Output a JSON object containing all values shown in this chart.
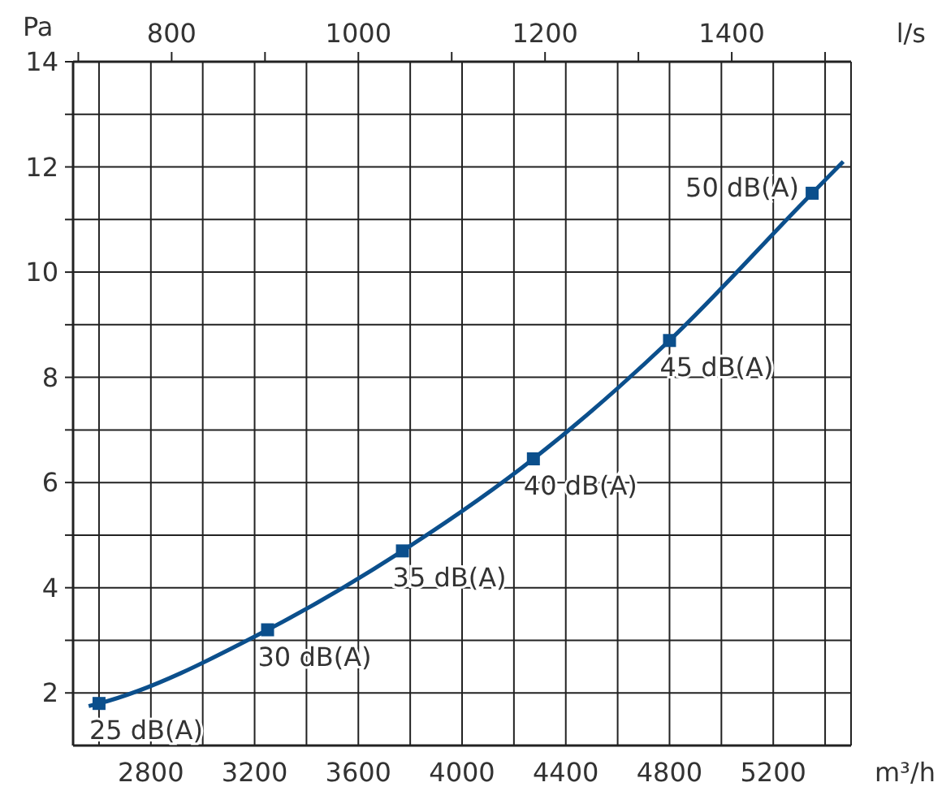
{
  "chart_data": {
    "type": "line",
    "xlabel": "m³/h",
    "ylabel": "Pa",
    "x2label": "l/s",
    "xlim": [
      2500,
      5500
    ],
    "ylim": [
      1,
      14
    ],
    "x2lim": [
      694.4,
      1527.8
    ],
    "xticks": [
      {
        "value": 2600,
        "label": null
      },
      2800,
      {
        "value": 3000,
        "label": null
      },
      3200,
      {
        "value": 3400,
        "label": null
      },
      3600,
      {
        "value": 3800,
        "label": null
      },
      4000,
      {
        "value": 4200,
        "label": null
      },
      4400,
      {
        "value": 4600,
        "label": null
      },
      4800,
      {
        "value": 5000,
        "label": null
      },
      5200,
      {
        "value": 5400,
        "label": null
      }
    ],
    "yticks": [
      2,
      {
        "value": 3,
        "label": null
      },
      4,
      {
        "value": 5,
        "label": null
      },
      6,
      {
        "value": 7,
        "label": null
      },
      8,
      {
        "value": 9,
        "label": null
      },
      10,
      {
        "value": 11,
        "label": null
      },
      12,
      {
        "value": 13,
        "label": null
      },
      14
    ],
    "x2ticks": [
      {
        "value": 700,
        "label": null
      },
      800,
      {
        "value": 900,
        "label": null
      },
      1000,
      {
        "value": 1100,
        "label": null
      },
      1200,
      {
        "value": 1300,
        "label": null
      },
      1400,
      {
        "value": 1500,
        "label": null
      }
    ],
    "grid": true,
    "series": [
      {
        "type": "line",
        "color": "#0b4f8c",
        "marker": "none",
        "x": [
          2560,
          2600,
          3250,
          3770,
          4275,
          4800,
          5350,
          5470
        ],
        "values": [
          1.75,
          1.8,
          3.2,
          4.7,
          6.45,
          8.7,
          11.5,
          12.1
        ]
      },
      {
        "type": "scatter",
        "color": "#0b4f8c",
        "marker": "square",
        "x": [
          2600,
          3250,
          3770,
          4275,
          4800,
          5350
        ],
        "values": [
          1.8,
          3.2,
          4.7,
          6.45,
          8.7,
          11.5
        ]
      }
    ],
    "annotations": [
      {
        "text": "25 dB(A)",
        "x": 2600,
        "y": 1.8
      },
      {
        "text": "30 dB(A)",
        "x": 3250,
        "y": 3.2
      },
      {
        "text": "35 dB(A)",
        "x": 3770,
        "y": 4.7
      },
      {
        "text": "40 dB(A)",
        "x": 4275,
        "y": 6.45
      },
      {
        "text": "45 dB(A)",
        "x": 4800,
        "y": 8.7
      },
      {
        "text": "50 dB(A)",
        "x": 5350,
        "y": 11.5
      }
    ]
  }
}
